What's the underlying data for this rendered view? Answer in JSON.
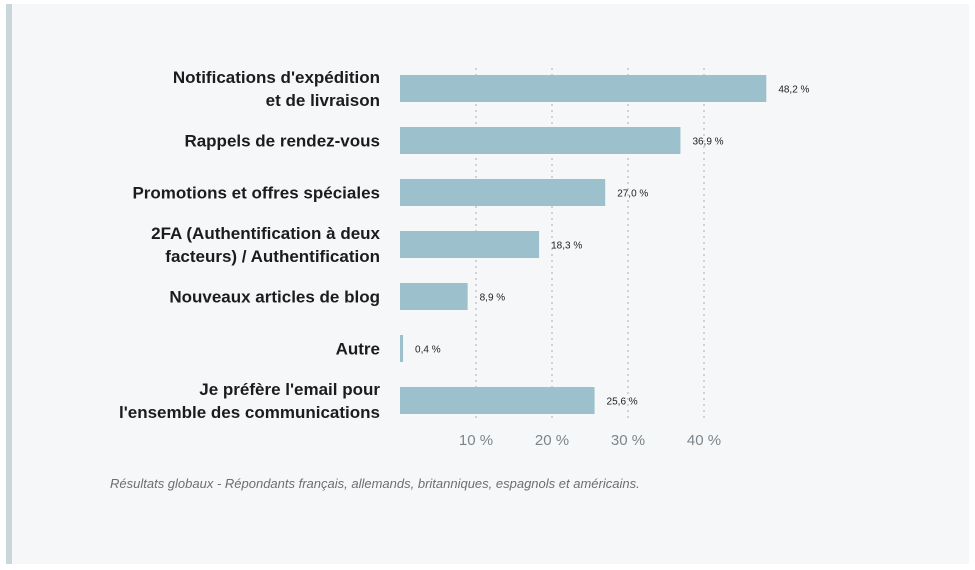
{
  "chart_data": {
    "type": "bar",
    "orientation": "horizontal",
    "categories": [
      [
        "Notifications d'expédition",
        "et de livraison"
      ],
      [
        "Rappels de rendez-vous"
      ],
      [
        "Promotions et offres spéciales"
      ],
      [
        "2FA (Authentification à deux",
        "facteurs) / Authentification"
      ],
      [
        "Nouveaux articles de blog"
      ],
      [
        "Autre"
      ],
      [
        "Je préfère l'email pour",
        "l'ensemble des communications"
      ]
    ],
    "values": [
      48.2,
      36.9,
      27.0,
      18.3,
      8.9,
      0.4,
      25.6
    ],
    "value_labels": [
      "48,2 %",
      "36,9 %",
      "27,0 %",
      "18,3 %",
      "8,9 %",
      "0,4 %",
      "25,6 %"
    ],
    "xticks": [
      10,
      20,
      30,
      40
    ],
    "xtick_labels": [
      "10 %",
      "20 %",
      "30 %",
      "40 %"
    ],
    "xlim": [
      0,
      50
    ],
    "grid": "vertical-dotted",
    "bar_color": "#9dc1cc",
    "grid_color": "#cfd3d6"
  },
  "footnote": "Résultats globaux - Répondants français, allemands, britanniques, espagnols et américains."
}
